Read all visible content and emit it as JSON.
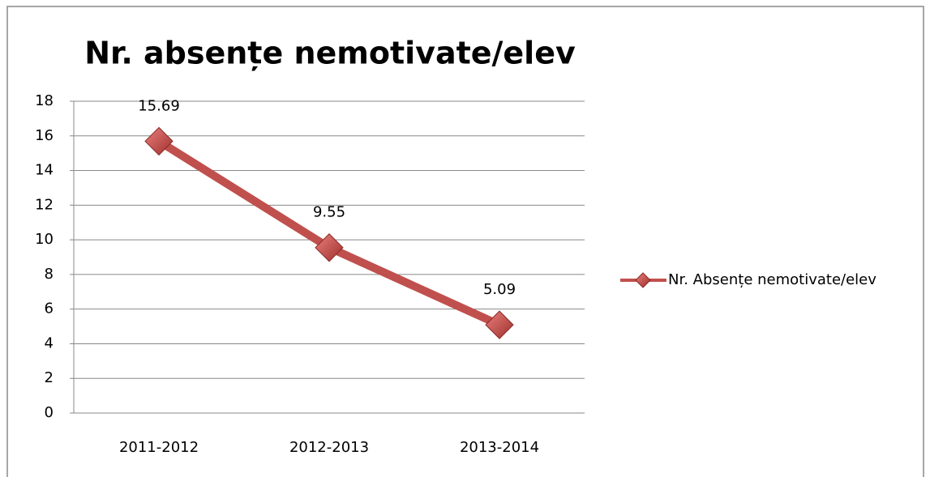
{
  "chart_data": {
    "type": "line",
    "title": "Nr. absențe nemotivate/elev",
    "categories": [
      "2011-2012",
      "2012-2013",
      "2013-2014"
    ],
    "series": [
      {
        "name": "Nr. Absențe nemotivate/elev",
        "color": "#c0504d",
        "values": [
          15.69,
          9.55,
          5.09
        ]
      }
    ],
    "ylim": [
      0,
      18
    ],
    "yticks": [
      0,
      2,
      4,
      6,
      8,
      10,
      12,
      14,
      16,
      18
    ],
    "grid": true,
    "legend": "right"
  }
}
